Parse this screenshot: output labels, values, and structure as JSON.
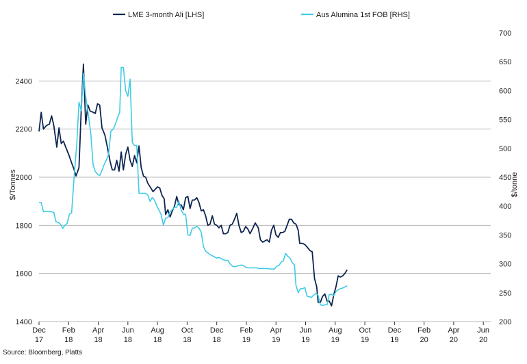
{
  "chart_data": {
    "type": "line",
    "title": "",
    "ylabel_left": "$/Tonnes",
    "ylabel_right": "$/tonne",
    "ylim_left": [
      1400,
      2600
    ],
    "ylim_right": [
      200,
      700
    ],
    "yticks_left": [
      1400,
      1600,
      1800,
      2000,
      2200,
      2400
    ],
    "yticks_right": [
      200,
      250,
      300,
      350,
      400,
      450,
      500,
      550,
      600,
      650,
      700
    ],
    "x_range": [
      0,
      30.5
    ],
    "x_ticks": [
      {
        "m": 0,
        "line1": "Dec",
        "line2": "17"
      },
      {
        "m": 2,
        "line1": "Feb",
        "line2": "18"
      },
      {
        "m": 4,
        "line1": "Apr",
        "line2": "18"
      },
      {
        "m": 6,
        "line1": "Jun",
        "line2": "18"
      },
      {
        "m": 8,
        "line1": "Aug",
        "line2": "18"
      },
      {
        "m": 10,
        "line1": "Oct",
        "line2": "18"
      },
      {
        "m": 12,
        "line1": "Dec",
        "line2": "18"
      },
      {
        "m": 14,
        "line1": "Feb",
        "line2": "19"
      },
      {
        "m": 16,
        "line1": "Apr",
        "line2": "19"
      },
      {
        "m": 18,
        "line1": "Jun",
        "line2": "19"
      },
      {
        "m": 20,
        "line1": "Aug",
        "line2": "19"
      },
      {
        "m": 22,
        "line1": "Oct",
        "line2": "19"
      },
      {
        "m": 24,
        "line1": "Dec",
        "line2": "19"
      },
      {
        "m": 26,
        "line1": "Feb",
        "line2": "20"
      },
      {
        "m": 28,
        "line1": "Apr",
        "line2": "20"
      },
      {
        "m": 30,
        "line1": "Jun",
        "line2": "20"
      }
    ],
    "series": [
      {
        "name": "LME 3-month Ali [LHS]",
        "axis": "left",
        "color": "#0d2450",
        "points": [
          [
            0.0,
            2190
          ],
          [
            0.15,
            2270
          ],
          [
            0.3,
            2200
          ],
          [
            0.5,
            2215
          ],
          [
            0.7,
            2220
          ],
          [
            0.85,
            2255
          ],
          [
            1.0,
            2215
          ],
          [
            1.2,
            2125
          ],
          [
            1.35,
            2205
          ],
          [
            1.5,
            2140
          ],
          [
            1.65,
            2150
          ],
          [
            1.8,
            2125
          ],
          [
            2.0,
            2095
          ],
          [
            2.2,
            2060
          ],
          [
            2.35,
            2035
          ],
          [
            2.5,
            2005
          ],
          [
            2.7,
            2040
          ],
          [
            2.85,
            2280
          ],
          [
            3.0,
            2470
          ],
          [
            3.15,
            2220
          ],
          [
            3.3,
            2300
          ],
          [
            3.45,
            2275
          ],
          [
            3.65,
            2270
          ],
          [
            3.8,
            2265
          ],
          [
            3.95,
            2305
          ],
          [
            4.1,
            2300
          ],
          [
            4.25,
            2205
          ],
          [
            4.45,
            2175
          ],
          [
            4.6,
            2130
          ],
          [
            4.8,
            2065
          ],
          [
            4.95,
            2030
          ],
          [
            5.1,
            2030
          ],
          [
            5.25,
            2070
          ],
          [
            5.4,
            2025
          ],
          [
            5.55,
            2105
          ],
          [
            5.7,
            2030
          ],
          [
            5.85,
            2095
          ],
          [
            6.0,
            2125
          ],
          [
            6.15,
            2070
          ],
          [
            6.3,
            2045
          ],
          [
            6.45,
            2090
          ],
          [
            6.6,
            2060
          ],
          [
            6.75,
            2130
          ],
          [
            6.9,
            2040
          ],
          [
            7.05,
            2005
          ],
          [
            7.2,
            2000
          ],
          [
            7.35,
            1975
          ],
          [
            7.55,
            1955
          ],
          [
            7.7,
            1940
          ],
          [
            7.85,
            1950
          ],
          [
            8.0,
            1960
          ],
          [
            8.15,
            1955
          ],
          [
            8.3,
            1925
          ],
          [
            8.45,
            1910
          ],
          [
            8.55,
            1845
          ],
          [
            8.7,
            1865
          ],
          [
            8.85,
            1835
          ],
          [
            9.0,
            1860
          ],
          [
            9.15,
            1880
          ],
          [
            9.3,
            1920
          ],
          [
            9.45,
            1885
          ],
          [
            9.6,
            1885
          ],
          [
            9.75,
            1865
          ],
          [
            9.9,
            1915
          ],
          [
            10.05,
            1920
          ],
          [
            10.2,
            1870
          ],
          [
            10.35,
            1905
          ],
          [
            10.5,
            1905
          ],
          [
            10.65,
            1915
          ],
          [
            10.8,
            1895
          ],
          [
            10.95,
            1860
          ],
          [
            11.1,
            1865
          ],
          [
            11.25,
            1840
          ],
          [
            11.4,
            1800
          ],
          [
            11.55,
            1805
          ],
          [
            11.7,
            1840
          ],
          [
            11.85,
            1805
          ],
          [
            12.0,
            1800
          ],
          [
            12.15,
            1790
          ],
          [
            12.3,
            1800
          ],
          [
            12.45,
            1765
          ],
          [
            12.6,
            1765
          ],
          [
            12.75,
            1770
          ],
          [
            12.9,
            1800
          ],
          [
            13.05,
            1805
          ],
          [
            13.2,
            1825
          ],
          [
            13.35,
            1850
          ],
          [
            13.5,
            1800
          ],
          [
            13.65,
            1770
          ],
          [
            13.8,
            1775
          ],
          [
            13.95,
            1795
          ],
          [
            14.1,
            1785
          ],
          [
            14.25,
            1765
          ],
          [
            14.45,
            1790
          ],
          [
            14.6,
            1810
          ],
          [
            14.8,
            1790
          ],
          [
            14.95,
            1740
          ],
          [
            15.1,
            1730
          ],
          [
            15.25,
            1735
          ],
          [
            15.4,
            1740
          ],
          [
            15.55,
            1730
          ],
          [
            15.7,
            1780
          ],
          [
            15.85,
            1800
          ],
          [
            16.0,
            1760
          ],
          [
            16.15,
            1750
          ],
          [
            16.3,
            1770
          ],
          [
            16.45,
            1770
          ],
          [
            16.6,
            1775
          ],
          [
            16.75,
            1800
          ],
          [
            16.9,
            1825
          ],
          [
            17.05,
            1825
          ],
          [
            17.2,
            1810
          ],
          [
            17.35,
            1805
          ],
          [
            17.5,
            1780
          ],
          [
            17.6,
            1725
          ],
          [
            17.8,
            1725
          ],
          [
            17.95,
            1720
          ],
          [
            18.1,
            1710
          ],
          [
            18.3,
            1695
          ],
          [
            18.45,
            1690
          ],
          [
            18.6,
            1580
          ],
          [
            18.75,
            1545
          ],
          [
            18.85,
            1480
          ],
          [
            19.0,
            1480
          ],
          [
            19.15,
            1505
          ],
          [
            19.3,
            1515
          ],
          [
            19.45,
            1485
          ],
          [
            19.6,
            1485
          ],
          [
            19.75,
            1465
          ],
          [
            19.9,
            1510
          ],
          [
            20.05,
            1545
          ],
          [
            20.2,
            1590
          ],
          [
            20.35,
            1585
          ],
          [
            20.5,
            1590
          ],
          [
            20.65,
            1600
          ],
          [
            20.8,
            1615
          ]
        ]
      },
      {
        "name": "Aus Alumina 1st FOB [RHS]",
        "axis": "right",
        "color": "#3fcbe6",
        "points": [
          [
            0.0,
            406
          ],
          [
            0.15,
            406
          ],
          [
            0.3,
            390
          ],
          [
            0.5,
            391
          ],
          [
            0.7,
            391
          ],
          [
            0.85,
            390
          ],
          [
            1.0,
            389
          ],
          [
            1.15,
            373
          ],
          [
            1.35,
            371
          ],
          [
            1.5,
            367
          ],
          [
            1.6,
            361
          ],
          [
            1.75,
            367
          ],
          [
            1.9,
            370
          ],
          [
            2.05,
            386
          ],
          [
            2.2,
            388
          ],
          [
            2.4,
            460
          ],
          [
            2.55,
            508
          ],
          [
            2.7,
            580
          ],
          [
            2.85,
            565
          ],
          [
            3.0,
            630
          ],
          [
            3.15,
            590
          ],
          [
            3.35,
            555
          ],
          [
            3.5,
            525
          ],
          [
            3.65,
            472
          ],
          [
            3.8,
            460
          ],
          [
            3.95,
            455
          ],
          [
            4.1,
            453
          ],
          [
            4.25,
            462
          ],
          [
            4.4,
            472
          ],
          [
            4.55,
            480
          ],
          [
            4.7,
            490
          ],
          [
            4.85,
            530
          ],
          [
            5.0,
            533
          ],
          [
            5.15,
            541
          ],
          [
            5.3,
            553
          ],
          [
            5.45,
            562
          ],
          [
            5.55,
            640
          ],
          [
            5.7,
            640
          ],
          [
            5.85,
            600
          ],
          [
            6.0,
            590
          ],
          [
            6.15,
            620
          ],
          [
            6.3,
            510
          ],
          [
            6.45,
            505
          ],
          [
            6.6,
            505
          ],
          [
            6.75,
            422
          ],
          [
            6.9,
            422
          ],
          [
            7.05,
            422
          ],
          [
            7.2,
            422
          ],
          [
            7.35,
            419
          ],
          [
            7.5,
            408
          ],
          [
            7.65,
            415
          ],
          [
            7.8,
            410
          ],
          [
            7.95,
            401
          ],
          [
            8.1,
            393
          ],
          [
            8.25,
            385
          ],
          [
            8.4,
            367
          ],
          [
            8.55,
            379
          ],
          [
            8.7,
            380
          ],
          [
            8.85,
            390
          ],
          [
            9.0,
            394
          ],
          [
            9.15,
            398
          ],
          [
            9.3,
            398
          ],
          [
            9.45,
            408
          ],
          [
            9.6,
            393
          ],
          [
            9.75,
            386
          ],
          [
            9.9,
            386
          ],
          [
            10.05,
            350
          ],
          [
            10.2,
            349
          ],
          [
            10.35,
            362
          ],
          [
            10.5,
            362
          ],
          [
            10.65,
            365
          ],
          [
            10.8,
            362
          ],
          [
            10.95,
            355
          ],
          [
            11.1,
            330
          ],
          [
            11.25,
            322
          ],
          [
            11.4,
            319
          ],
          [
            11.55,
            316
          ],
          [
            11.7,
            314
          ],
          [
            11.85,
            312
          ],
          [
            12.0,
            310
          ],
          [
            12.15,
            311
          ],
          [
            12.3,
            309
          ],
          [
            12.45,
            307
          ],
          [
            12.6,
            306
          ],
          [
            12.75,
            306
          ],
          [
            12.9,
            300
          ],
          [
            13.05,
            296
          ],
          [
            13.2,
            295
          ],
          [
            13.35,
            296
          ],
          [
            13.5,
            297
          ],
          [
            13.65,
            298
          ],
          [
            13.8,
            297
          ],
          [
            13.95,
            294
          ],
          [
            14.1,
            293
          ],
          [
            14.25,
            293
          ],
          [
            14.4,
            293
          ],
          [
            14.55,
            293
          ],
          [
            14.7,
            293
          ],
          [
            14.85,
            292
          ],
          [
            15.0,
            292
          ],
          [
            15.15,
            292
          ],
          [
            15.3,
            292
          ],
          [
            15.45,
            292
          ],
          [
            15.6,
            291
          ],
          [
            15.75,
            291
          ],
          [
            15.9,
            291
          ],
          [
            16.05,
            296
          ],
          [
            16.2,
            297
          ],
          [
            16.35,
            303
          ],
          [
            16.5,
            305
          ],
          [
            16.65,
            318
          ],
          [
            16.8,
            313
          ],
          [
            16.95,
            310
          ],
          [
            17.1,
            302
          ],
          [
            17.25,
            298
          ],
          [
            17.35,
            263
          ],
          [
            17.5,
            250
          ],
          [
            17.65,
            257
          ],
          [
            17.8,
            257
          ],
          [
            17.95,
            259
          ],
          [
            18.1,
            244
          ],
          [
            18.25,
            243
          ],
          [
            18.4,
            242
          ],
          [
            18.55,
            246
          ],
          [
            18.7,
            249
          ],
          [
            18.85,
            245
          ],
          [
            19.0,
            229
          ],
          [
            19.15,
            228
          ],
          [
            19.3,
            229
          ],
          [
            19.45,
            229
          ],
          [
            19.6,
            247
          ],
          [
            19.75,
            247
          ],
          [
            19.9,
            245
          ],
          [
            20.05,
            252
          ],
          [
            20.2,
            255
          ],
          [
            20.35,
            257
          ],
          [
            20.5,
            258
          ],
          [
            20.65,
            260
          ],
          [
            20.8,
            262
          ]
        ]
      }
    ]
  },
  "legend": {
    "items": [
      {
        "label": "LME 3-month Ali [LHS]",
        "color": "#0d2450"
      },
      {
        "label": "Aus Alumina 1st FOB [RHS]",
        "color": "#3fcbe6"
      }
    ]
  },
  "source": "Source: Bloomberg, Platts"
}
